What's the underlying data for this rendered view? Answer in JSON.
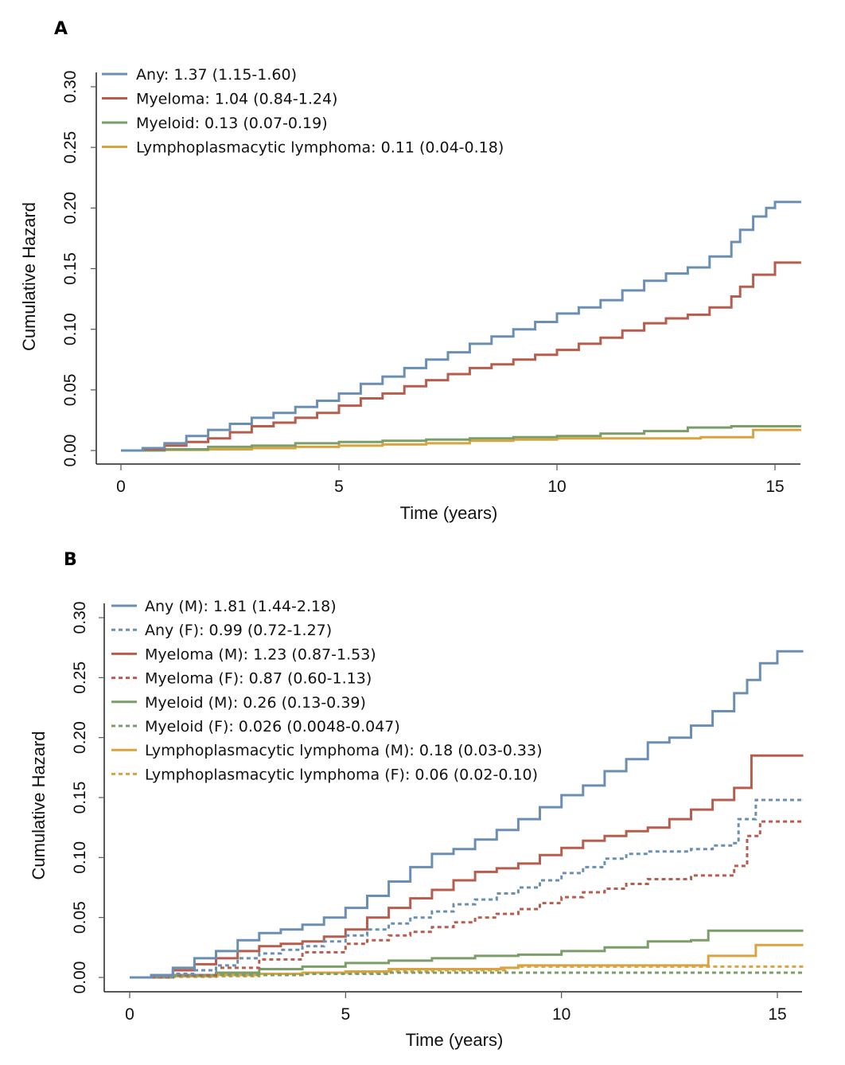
{
  "colors": {
    "any": "#6b8fb4",
    "myeloma": "#b65d4d",
    "myeloid": "#7b9e69",
    "lympho": "#d9a43f"
  },
  "chart_data": [
    {
      "type": "line",
      "step": true,
      "panel_label": "A",
      "title": "",
      "xlabel": "Time (years)",
      "ylabel": "Cumulative Hazard",
      "xlim": [
        0,
        15.6
      ],
      "ylim": [
        0,
        0.3
      ],
      "xticks": [
        0,
        5,
        10,
        15
      ],
      "xtick_labels": [
        "0",
        "5",
        "10",
        "15"
      ],
      "yticks": [
        0,
        0.05,
        0.1,
        0.15,
        0.2,
        0.25,
        0.3
      ],
      "ytick_labels": [
        "0.00",
        "0.05",
        "0.10",
        "0.15",
        "0.20",
        "0.25",
        "0.30"
      ],
      "grid": false,
      "legend_position": "top-left",
      "series": [
        {
          "name": "Any: 1.37 (1.15-1.60)",
          "color_key": "any",
          "dash": false,
          "x": [
            0,
            0.5,
            1,
            1.5,
            2,
            2.5,
            3,
            3.5,
            4,
            4.5,
            5,
            5.5,
            6,
            6.5,
            7,
            7.5,
            8,
            8.5,
            9,
            9.5,
            10,
            10.5,
            11,
            11.5,
            12,
            12.5,
            13,
            13.5,
            14,
            14.2,
            14.5,
            14.8,
            15,
            15.6
          ],
          "y": [
            0,
            0.002,
            0.006,
            0.012,
            0.017,
            0.022,
            0.027,
            0.031,
            0.036,
            0.041,
            0.047,
            0.055,
            0.061,
            0.068,
            0.075,
            0.081,
            0.088,
            0.094,
            0.1,
            0.106,
            0.113,
            0.118,
            0.124,
            0.132,
            0.14,
            0.146,
            0.151,
            0.16,
            0.172,
            0.182,
            0.193,
            0.2,
            0.205,
            0.205
          ]
        },
        {
          "name": "Myeloma: 1.04 (0.84-1.24)",
          "color_key": "myeloma",
          "dash": false,
          "x": [
            0,
            0.5,
            1,
            1.5,
            2,
            2.5,
            3,
            3.5,
            4,
            4.5,
            5,
            5.5,
            6,
            6.5,
            7,
            7.5,
            8,
            8.5,
            9,
            9.5,
            10,
            10.5,
            11,
            11.5,
            12,
            12.5,
            13,
            13.5,
            14,
            14.2,
            14.5,
            15,
            15.6
          ],
          "y": [
            0,
            0.001,
            0.004,
            0.007,
            0.01,
            0.015,
            0.02,
            0.023,
            0.027,
            0.031,
            0.037,
            0.043,
            0.047,
            0.053,
            0.058,
            0.063,
            0.068,
            0.071,
            0.075,
            0.079,
            0.083,
            0.088,
            0.093,
            0.099,
            0.105,
            0.109,
            0.112,
            0.118,
            0.127,
            0.135,
            0.145,
            0.155,
            0.155
          ]
        },
        {
          "name": "Myeloid: 0.13 (0.07-0.19)",
          "color_key": "myeloid",
          "dash": false,
          "x": [
            0,
            1,
            2,
            3,
            4,
            5,
            6,
            7,
            8,
            9,
            10,
            11,
            12,
            13,
            14,
            15.6
          ],
          "y": [
            0,
            0.001,
            0.003,
            0.004,
            0.006,
            0.007,
            0.008,
            0.009,
            0.01,
            0.011,
            0.012,
            0.014,
            0.016,
            0.019,
            0.02,
            0.02
          ]
        },
        {
          "name": "Lymphoplasmacytic lymphoma: 0.11 (0.04-0.18)",
          "color_key": "lympho",
          "dash": false,
          "x": [
            0,
            1,
            2,
            3,
            4,
            5,
            6,
            7,
            8,
            9,
            10,
            12,
            13.3,
            14.5,
            15.6
          ],
          "y": [
            0,
            0.0005,
            0.001,
            0.002,
            0.003,
            0.004,
            0.005,
            0.006,
            0.008,
            0.009,
            0.01,
            0.01,
            0.011,
            0.017,
            0.017
          ]
        }
      ]
    },
    {
      "type": "line",
      "step": true,
      "panel_label": "B",
      "title": "",
      "xlabel": "Time (years)",
      "ylabel": "Cumulative Hazard",
      "xlim": [
        0,
        15.6
      ],
      "ylim": [
        0,
        0.3
      ],
      "xticks": [
        0,
        5,
        10,
        15
      ],
      "xtick_labels": [
        "0",
        "5",
        "10",
        "15"
      ],
      "yticks": [
        0,
        0.05,
        0.1,
        0.15,
        0.2,
        0.25,
        0.3
      ],
      "ytick_labels": [
        "0.00",
        "0.05",
        "0.10",
        "0.15",
        "0.20",
        "0.25",
        "0.30"
      ],
      "grid": false,
      "legend_position": "top-left",
      "series": [
        {
          "name": "Any (M): 1.81 (1.44-2.18)",
          "color_key": "any",
          "dash": false,
          "x": [
            0,
            0.5,
            1,
            1.5,
            2,
            2.5,
            3,
            3.5,
            4,
            4.5,
            5,
            5.5,
            6,
            6.5,
            7,
            7.5,
            8,
            8.5,
            9,
            9.5,
            10,
            10.5,
            11,
            11.5,
            12,
            12.5,
            13,
            13.5,
            14,
            14.3,
            14.6,
            15,
            15.6
          ],
          "y": [
            0,
            0.002,
            0.008,
            0.016,
            0.022,
            0.031,
            0.037,
            0.04,
            0.044,
            0.05,
            0.058,
            0.068,
            0.08,
            0.092,
            0.103,
            0.107,
            0.115,
            0.123,
            0.132,
            0.142,
            0.152,
            0.16,
            0.172,
            0.182,
            0.196,
            0.2,
            0.21,
            0.222,
            0.237,
            0.248,
            0.262,
            0.272,
            0.272
          ]
        },
        {
          "name": "Any (F): 0.99 (0.72-1.27)",
          "color_key": "any",
          "dash": true,
          "x": [
            0,
            0.5,
            1,
            1.5,
            2,
            2.5,
            3,
            3.5,
            4,
            4.5,
            5,
            5.5,
            6,
            6.5,
            7,
            7.5,
            8,
            8.5,
            9,
            9.5,
            10,
            10.5,
            11,
            11.5,
            12,
            13,
            13.5,
            14,
            14.1,
            14.5,
            15.6
          ],
          "y": [
            0,
            0.001,
            0.003,
            0.006,
            0.01,
            0.016,
            0.02,
            0.023,
            0.026,
            0.03,
            0.035,
            0.04,
            0.045,
            0.05,
            0.055,
            0.061,
            0.065,
            0.07,
            0.075,
            0.081,
            0.087,
            0.092,
            0.099,
            0.103,
            0.105,
            0.107,
            0.11,
            0.112,
            0.132,
            0.148,
            0.148
          ]
        },
        {
          "name": "Myeloma (M): 1.23 (0.87-1.53)",
          "color_key": "myeloma",
          "dash": false,
          "x": [
            0,
            0.5,
            1,
            1.5,
            2,
            2.5,
            3,
            3.5,
            4,
            4.5,
            5,
            5.5,
            6,
            6.5,
            7,
            7.5,
            8,
            8.5,
            9,
            9.5,
            10,
            10.5,
            11,
            11.5,
            12,
            12.5,
            13,
            13.5,
            14,
            14.4,
            15.6
          ],
          "y": [
            0,
            0.002,
            0.006,
            0.011,
            0.016,
            0.022,
            0.026,
            0.028,
            0.03,
            0.034,
            0.04,
            0.05,
            0.058,
            0.066,
            0.073,
            0.081,
            0.088,
            0.091,
            0.095,
            0.102,
            0.108,
            0.114,
            0.118,
            0.122,
            0.125,
            0.132,
            0.14,
            0.148,
            0.158,
            0.185,
            0.185
          ]
        },
        {
          "name": "Myeloma (F): 0.87 (0.60-1.13)",
          "color_key": "myeloma",
          "dash": true,
          "x": [
            0,
            1,
            2,
            3,
            4,
            5,
            5.5,
            6,
            6.5,
            7,
            7.5,
            8,
            8.5,
            9,
            9.5,
            10,
            10.5,
            11,
            11.5,
            12,
            13,
            14,
            14.3,
            14.6,
            15.6
          ],
          "y": [
            0,
            0.002,
            0.008,
            0.015,
            0.021,
            0.028,
            0.031,
            0.035,
            0.038,
            0.042,
            0.046,
            0.05,
            0.053,
            0.057,
            0.062,
            0.067,
            0.071,
            0.074,
            0.078,
            0.082,
            0.085,
            0.093,
            0.118,
            0.13,
            0.13
          ]
        },
        {
          "name": "Myeloid (M): 0.26 (0.13-0.39)",
          "color_key": "myeloid",
          "dash": false,
          "x": [
            0,
            1,
            2,
            3,
            4,
            5,
            6,
            7,
            8,
            9,
            10,
            11,
            12,
            13,
            13.4,
            15.6
          ],
          "y": [
            0,
            0.002,
            0.004,
            0.007,
            0.009,
            0.012,
            0.014,
            0.016,
            0.018,
            0.019,
            0.022,
            0.025,
            0.03,
            0.031,
            0.039,
            0.039
          ]
        },
        {
          "name": "Myeloid (F): 0.026 (0.0048-0.047)",
          "color_key": "myeloid",
          "dash": true,
          "x": [
            0,
            1,
            2,
            3,
            4,
            5,
            6,
            15.6
          ],
          "y": [
            0,
            0.001,
            0.002,
            0.002,
            0.003,
            0.003,
            0.004,
            0.004
          ]
        },
        {
          "name": "Lymphoplasmacytic lymphoma (M): 0.18 (0.03-0.33)",
          "color_key": "lympho",
          "dash": false,
          "x": [
            0,
            1,
            2,
            3,
            4,
            5,
            6,
            7,
            8,
            8.6,
            9,
            10,
            12,
            13.4,
            14.5,
            15.6
          ],
          "y": [
            0,
            0.001,
            0.002,
            0.003,
            0.004,
            0.005,
            0.007,
            0.007,
            0.007,
            0.008,
            0.01,
            0.01,
            0.01,
            0.018,
            0.027,
            0.027
          ]
        },
        {
          "name": "Lymphoplasmacytic lymphoma (F): 0.06 (0.02-0.10)",
          "color_key": "lympho",
          "dash": true,
          "x": [
            0,
            1,
            2,
            3,
            4,
            5,
            6,
            7,
            8,
            8.7,
            9,
            15.6
          ],
          "y": [
            0,
            0.0005,
            0.001,
            0.002,
            0.003,
            0.004,
            0.005,
            0.006,
            0.006,
            0.008,
            0.009,
            0.009
          ]
        }
      ]
    }
  ]
}
